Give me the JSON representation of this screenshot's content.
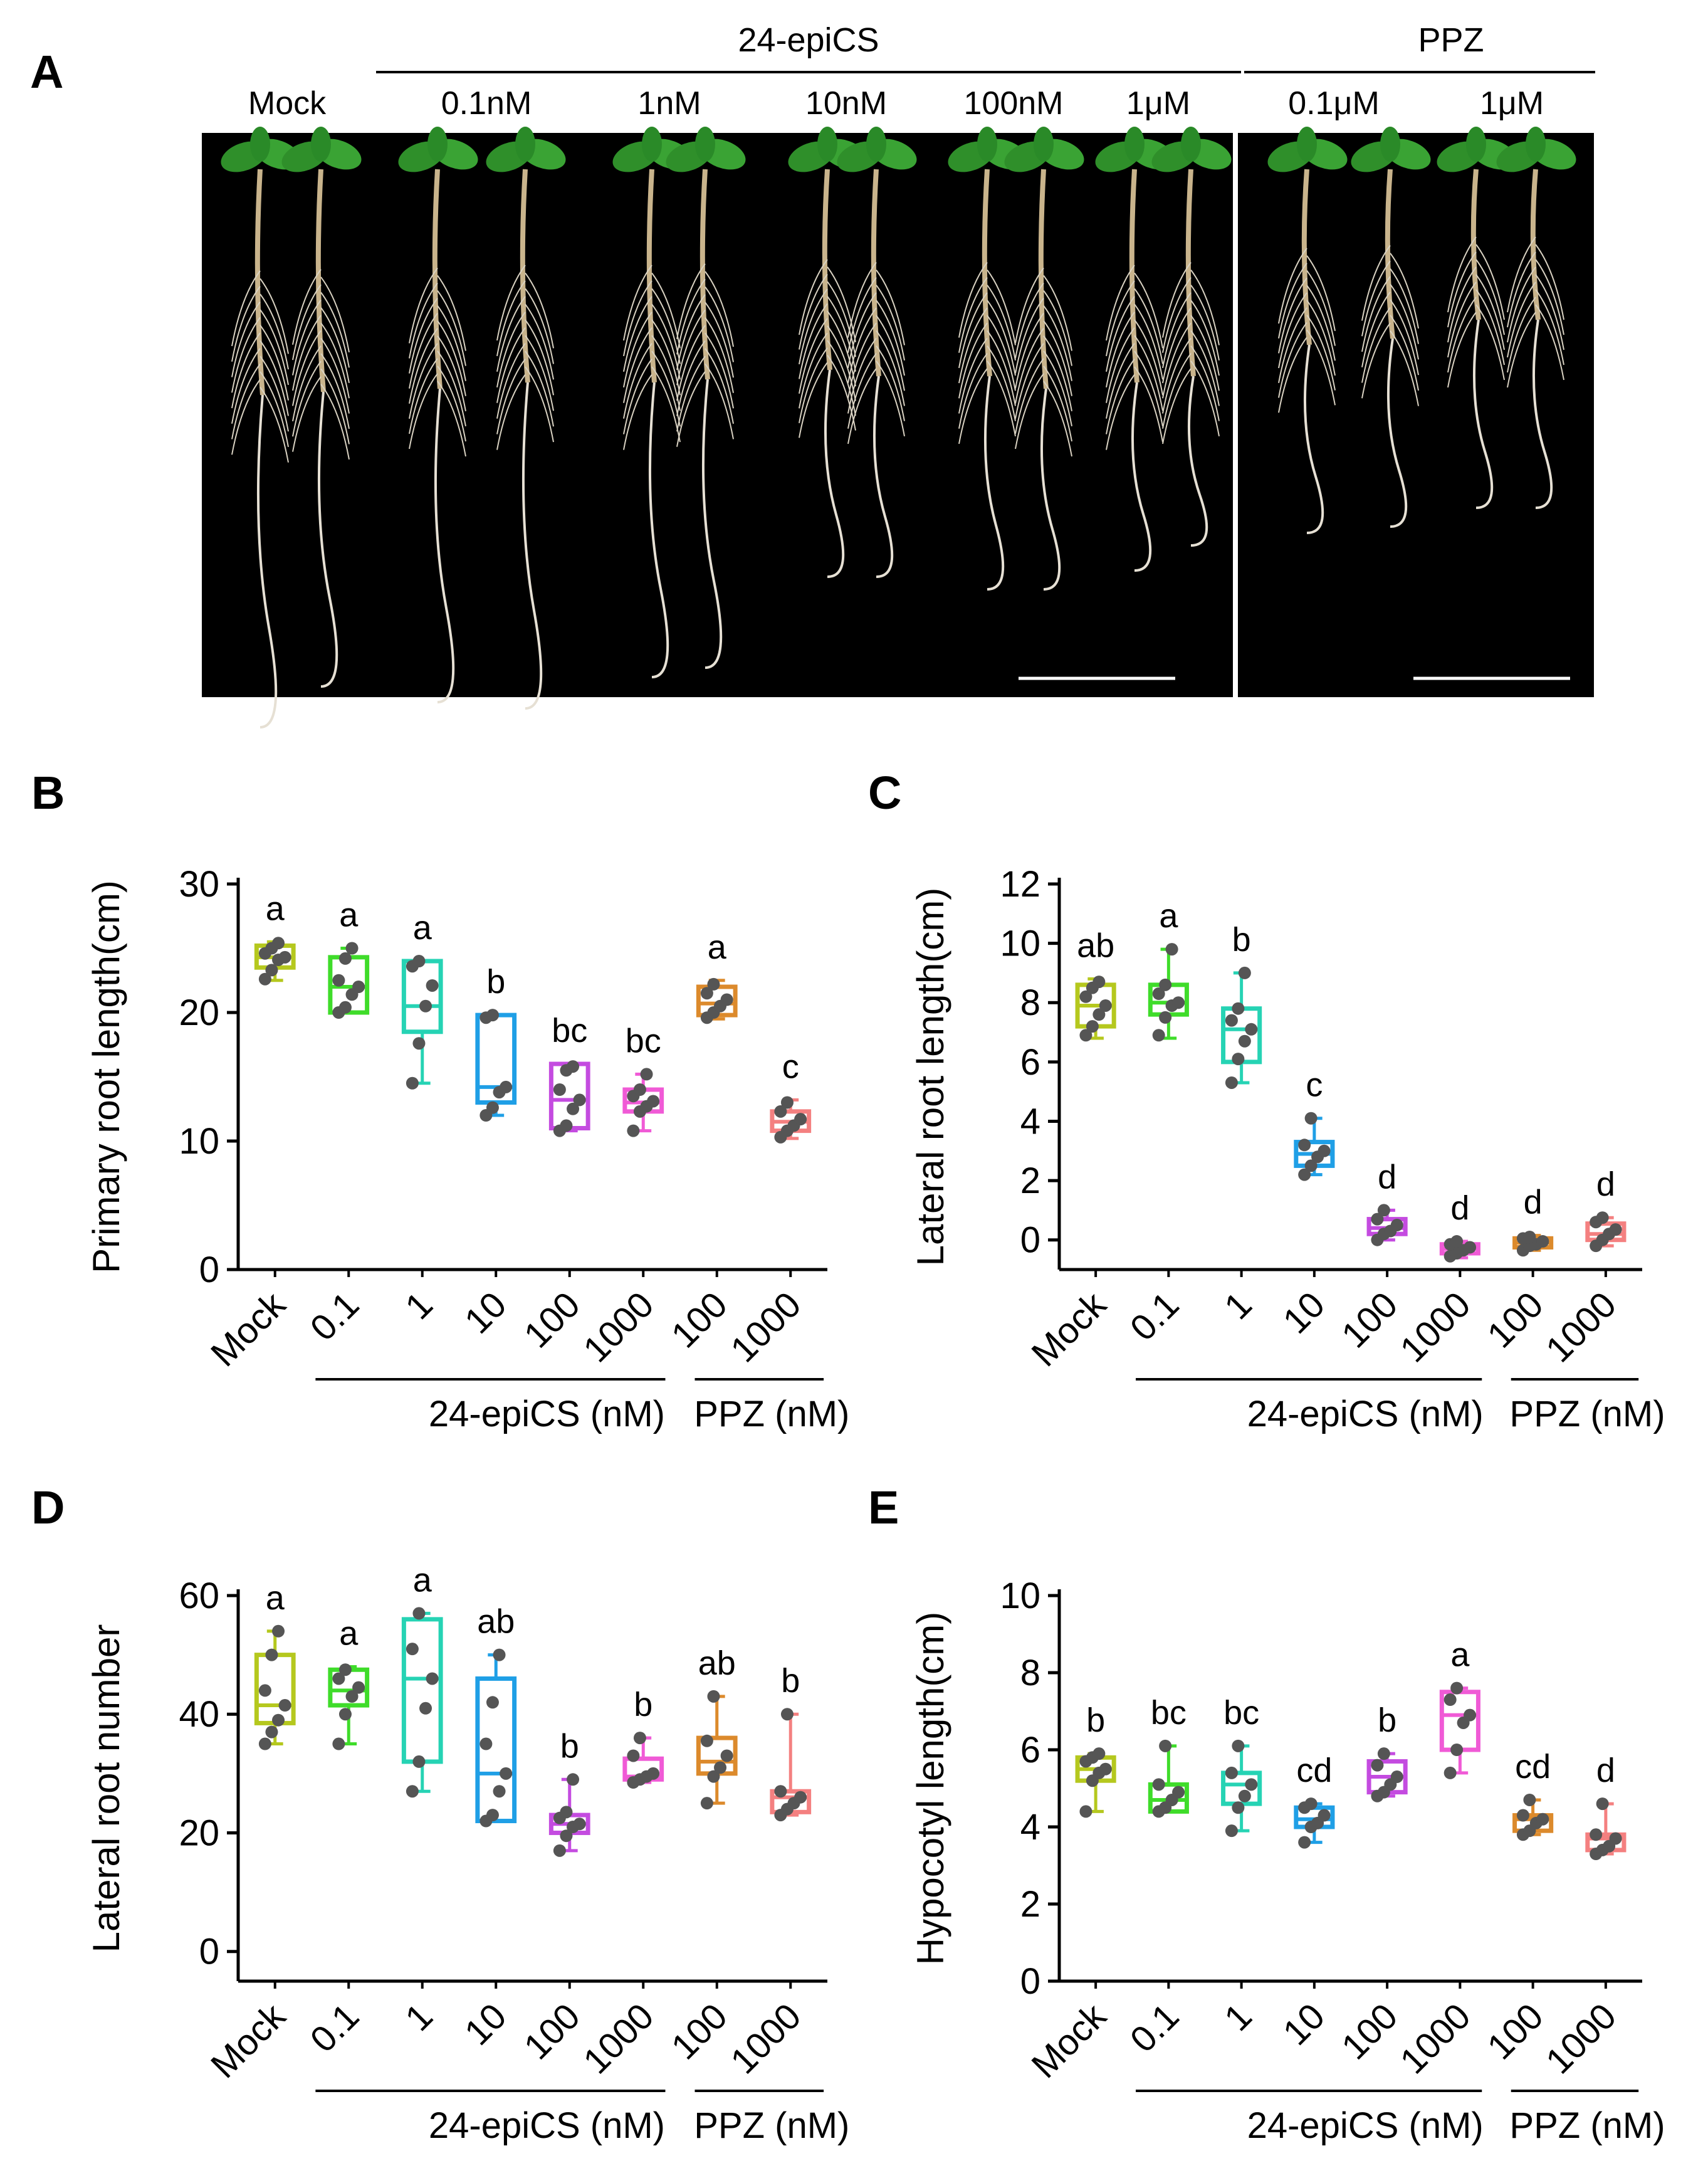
{
  "panel_a": {
    "letter": "A",
    "group_24": "24-epiCS",
    "group_ppz": "PPZ",
    "labels": [
      "Mock",
      "0.1nM",
      "1nM",
      "10nM",
      "100nM",
      "1μM",
      "0.1μM",
      "1μM"
    ]
  },
  "colors": [
    "#b5c81e",
    "#3fdc2a",
    "#26d3b4",
    "#1f9fe6",
    "#c44be0",
    "#f05ad6",
    "#dc8a2c",
    "#f48080"
  ],
  "categories": [
    "Mock",
    "0.1",
    "1",
    "10",
    "100",
    "1000",
    "100",
    "1000"
  ],
  "group_labels": [
    "24-epiCS (nM)",
    "PPZ (nM)"
  ],
  "chart_data": [
    {
      "panel": "B",
      "type": "box",
      "ylabel": "Primary root length(cm)",
      "ylim": [
        0,
        30
      ],
      "yticks": [
        0,
        10,
        20,
        30
      ],
      "letters": [
        "a",
        "a",
        "a",
        "b",
        "bc",
        "bc",
        "a",
        "c"
      ],
      "boxes": [
        {
          "min": 22.5,
          "q1": 23.5,
          "median": 24.3,
          "q3": 25.2,
          "max": 25.5,
          "points": [
            22.6,
            23.3,
            24.1,
            24.3,
            24.6,
            25.0,
            25.4
          ]
        },
        {
          "min": 20.0,
          "q1": 20.0,
          "median": 22.0,
          "q3": 24.3,
          "max": 25.0,
          "points": [
            20.0,
            20.4,
            21.4,
            22.0,
            22.5,
            24.2,
            25.0
          ]
        },
        {
          "min": 14.5,
          "q1": 18.5,
          "median": 20.5,
          "q3": 24.0,
          "max": 24.0,
          "points": [
            14.5,
            17.6,
            20.5,
            22.1,
            23.6,
            24.0
          ]
        },
        {
          "min": 12.0,
          "q1": 13.0,
          "median": 14.2,
          "q3": 19.8,
          "max": 19.8,
          "points": [
            12.0,
            12.6,
            13.8,
            14.2,
            19.6,
            19.8
          ]
        },
        {
          "min": 10.8,
          "q1": 11.0,
          "median": 13.2,
          "q3": 16.0,
          "max": 16.0,
          "points": [
            10.8,
            11.2,
            12.5,
            13.2,
            14.0,
            15.5,
            15.8
          ]
        },
        {
          "min": 10.8,
          "q1": 12.3,
          "median": 13.0,
          "q3": 14.0,
          "max": 15.2,
          "points": [
            10.8,
            12.3,
            12.7,
            13.1,
            13.5,
            14.0,
            15.2
          ]
        },
        {
          "min": 19.5,
          "q1": 19.8,
          "median": 20.7,
          "q3": 22.0,
          "max": 22.5,
          "points": [
            19.6,
            20.0,
            20.5,
            21.0,
            21.5,
            22.2
          ]
        },
        {
          "min": 10.2,
          "q1": 10.8,
          "median": 11.5,
          "q3": 12.3,
          "max": 13.2,
          "points": [
            10.3,
            10.8,
            11.2,
            11.7,
            12.3,
            13.0
          ]
        }
      ]
    },
    {
      "panel": "C",
      "type": "box",
      "ylabel": "Lateral root length(cm)",
      "ylim": [
        -1,
        12
      ],
      "yticks": [
        0,
        2,
        4,
        6,
        8,
        10,
        12
      ],
      "letters": [
        "ab",
        "a",
        "b",
        "c",
        "d",
        "d",
        "d",
        "d"
      ],
      "boxes": [
        {
          "min": 6.8,
          "q1": 7.2,
          "median": 7.9,
          "q3": 8.6,
          "max": 8.8,
          "points": [
            6.9,
            7.2,
            7.6,
            7.9,
            8.2,
            8.5,
            8.7
          ]
        },
        {
          "min": 6.8,
          "q1": 7.6,
          "median": 8.0,
          "q3": 8.6,
          "max": 9.8,
          "points": [
            6.9,
            7.5,
            7.9,
            8.0,
            8.3,
            8.6,
            9.8
          ]
        },
        {
          "min": 5.3,
          "q1": 6.0,
          "median": 7.1,
          "q3": 7.8,
          "max": 9.0,
          "points": [
            5.3,
            6.1,
            6.7,
            7.1,
            7.4,
            7.8,
            9.0
          ]
        },
        {
          "min": 2.2,
          "q1": 2.5,
          "median": 2.9,
          "q3": 3.3,
          "max": 4.1,
          "points": [
            2.2,
            2.5,
            2.8,
            3.0,
            3.2,
            4.1
          ]
        },
        {
          "min": 0.0,
          "q1": 0.2,
          "median": 0.4,
          "q3": 0.7,
          "max": 1.0,
          "points": [
            0.0,
            0.2,
            0.3,
            0.5,
            0.7,
            1.0
          ]
        },
        {
          "min": -0.6,
          "q1": -0.45,
          "median": -0.3,
          "q3": -0.15,
          "max": -0.05,
          "points": [
            -0.55,
            -0.45,
            -0.35,
            -0.25,
            -0.15,
            -0.05
          ]
        },
        {
          "min": -0.35,
          "q1": -0.25,
          "median": -0.1,
          "q3": 0.05,
          "max": 0.15,
          "points": [
            -0.35,
            -0.2,
            -0.15,
            -0.05,
            0.05,
            0.1
          ]
        },
        {
          "min": -0.2,
          "q1": 0.0,
          "median": 0.2,
          "q3": 0.55,
          "max": 0.75,
          "points": [
            -0.2,
            0.0,
            0.2,
            0.35,
            0.6,
            0.75
          ]
        }
      ]
    },
    {
      "panel": "D",
      "type": "box",
      "ylabel": "Lateral root number",
      "ylim": [
        -5,
        60
      ],
      "yticks": [
        0,
        20,
        40,
        60
      ],
      "letters": [
        "a",
        "a",
        "a",
        "ab",
        "b",
        "b",
        "ab",
        "b"
      ],
      "boxes": [
        {
          "min": 35,
          "q1": 38.5,
          "median": 41.5,
          "q3": 50,
          "max": 54,
          "points": [
            35,
            37,
            39,
            41.5,
            44,
            50,
            54
          ]
        },
        {
          "min": 35,
          "q1": 41.5,
          "median": 44,
          "q3": 47.5,
          "max": 48,
          "points": [
            35,
            40,
            43,
            44.5,
            46,
            47.5
          ]
        },
        {
          "min": 27,
          "q1": 32,
          "median": 46,
          "q3": 56,
          "max": 57,
          "points": [
            27,
            32,
            41,
            46,
            51,
            57
          ]
        },
        {
          "min": 22,
          "q1": 22,
          "median": 30,
          "q3": 46,
          "max": 50,
          "points": [
            22,
            23,
            27,
            30,
            35,
            42,
            50
          ]
        },
        {
          "min": 17,
          "q1": 20,
          "median": 21.5,
          "q3": 23,
          "max": 29,
          "points": [
            17,
            19.5,
            21,
            21.5,
            22.5,
            23.5,
            29
          ]
        },
        {
          "min": 28.5,
          "q1": 29,
          "median": 29.5,
          "q3": 32.5,
          "max": 36,
          "points": [
            28.5,
            29,
            29.5,
            30,
            33,
            36
          ]
        },
        {
          "min": 25,
          "q1": 30,
          "median": 32,
          "q3": 36,
          "max": 43,
          "points": [
            25,
            29.5,
            31,
            33,
            35.5,
            43
          ]
        },
        {
          "min": 23,
          "q1": 23.5,
          "median": 26,
          "q3": 27,
          "max": 40,
          "points": [
            23,
            24,
            25,
            26,
            27,
            40
          ]
        }
      ]
    },
    {
      "panel": "E",
      "type": "box",
      "ylabel": "Hypocotyl length(cm)",
      "ylim": [
        0,
        10
      ],
      "yticks": [
        0,
        2,
        4,
        6,
        8,
        10
      ],
      "letters": [
        "b",
        "bc",
        "bc",
        "cd",
        "b",
        "a",
        "cd",
        "d"
      ],
      "boxes": [
        {
          "min": 4.4,
          "q1": 5.2,
          "median": 5.5,
          "q3": 5.8,
          "max": 5.9,
          "points": [
            4.4,
            5.2,
            5.4,
            5.5,
            5.7,
            5.8,
            5.9
          ]
        },
        {
          "min": 4.4,
          "q1": 4.4,
          "median": 4.7,
          "q3": 5.1,
          "max": 6.1,
          "points": [
            4.4,
            4.5,
            4.7,
            4.9,
            5.1,
            6.1
          ]
        },
        {
          "min": 3.9,
          "q1": 4.6,
          "median": 5.1,
          "q3": 5.4,
          "max": 6.1,
          "points": [
            3.9,
            4.5,
            4.8,
            5.1,
            5.4,
            6.1
          ]
        },
        {
          "min": 3.6,
          "q1": 4.0,
          "median": 4.2,
          "q3": 4.5,
          "max": 4.6,
          "points": [
            3.6,
            4.0,
            4.1,
            4.3,
            4.5,
            4.6
          ]
        },
        {
          "min": 4.8,
          "q1": 4.9,
          "median": 5.3,
          "q3": 5.7,
          "max": 5.9,
          "points": [
            4.8,
            4.9,
            5.1,
            5.3,
            5.6,
            5.9
          ]
        },
        {
          "min": 5.4,
          "q1": 6.0,
          "median": 6.9,
          "q3": 7.5,
          "max": 7.6,
          "points": [
            5.4,
            6.0,
            6.7,
            6.9,
            7.3,
            7.6
          ]
        },
        {
          "min": 3.8,
          "q1": 3.9,
          "median": 4.2,
          "q3": 4.3,
          "max": 4.7,
          "points": [
            3.8,
            3.9,
            4.1,
            4.2,
            4.3,
            4.7
          ]
        },
        {
          "min": 3.3,
          "q1": 3.4,
          "median": 3.7,
          "q3": 3.8,
          "max": 4.6,
          "points": [
            3.3,
            3.4,
            3.5,
            3.7,
            3.8,
            4.6
          ]
        }
      ]
    }
  ]
}
